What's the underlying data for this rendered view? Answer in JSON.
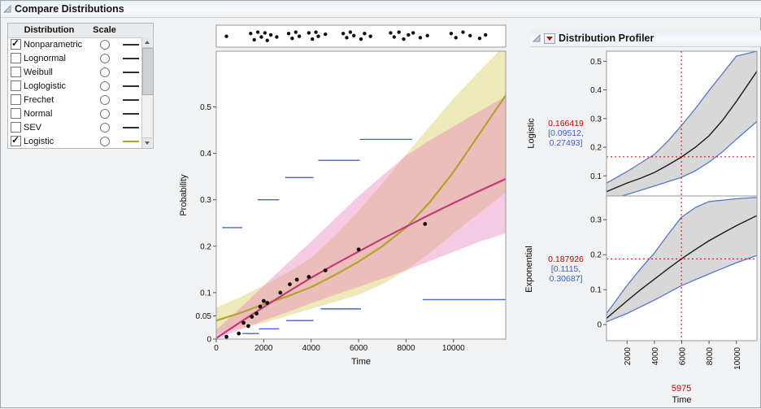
{
  "compare": {
    "title": "Compare Distributions",
    "table": {
      "headers": [
        "Distribution",
        "Scale"
      ],
      "rows": [
        {
          "label": "Nonparametric",
          "checked": true,
          "line_color": "#2e2e2e"
        },
        {
          "label": "Lognormal",
          "checked": false,
          "line_color": "#2e2e2e"
        },
        {
          "label": "Weibull",
          "checked": false,
          "line_color": "#2e2e2e"
        },
        {
          "label": "Loglogistic",
          "checked": false,
          "line_color": "#2e2e2e"
        },
        {
          "label": "Frechet",
          "checked": false,
          "line_color": "#2e2e2e"
        },
        {
          "label": "Normal",
          "checked": false,
          "line_color": "#2e2e2e"
        },
        {
          "label": "SEV",
          "checked": false,
          "line_color": "#2e2e2e"
        },
        {
          "label": "Logistic",
          "checked": true,
          "line_color": "#b3a22e"
        }
      ]
    }
  },
  "profiler": {
    "title": "Distribution Profiler",
    "rows": [
      {
        "label": "Logistic",
        "value": "0.166419",
        "ci_lines": [
          "[0.09512,",
          "0.27493]"
        ]
      },
      {
        "label": "Exponential",
        "value": "0.187926",
        "ci_lines": [
          "[0.1115,",
          "0.30687]"
        ]
      }
    ],
    "x_current": "5975",
    "x_label": "Time"
  },
  "icons": {
    "disclosure_open": "triangle-open",
    "red_triangle_menu": "red-triangle-down",
    "scrollbar_up": "triangle-up",
    "scrollbar_down": "triangle-down"
  },
  "colors": {
    "exponential_fit": "#c23b7c",
    "logistic_fit": "#b3a22e",
    "nonparametric_ci": "#4466cf",
    "profiler_value": "#cc0000",
    "profiler_ci_text": "#3a5fc8",
    "profiler_band": "#d8d8d8",
    "profiler_bound": "#5577cc"
  },
  "chart_data": [
    {
      "id": "compare-plot",
      "type": "line",
      "title": "Compare Distributions probability plot",
      "xlabel": "Time",
      "ylabel": "Probability",
      "xlim": [
        0,
        12200
      ],
      "ylim": [
        0,
        0.62
      ],
      "xticks": [
        0,
        2000,
        4000,
        6000,
        8000,
        10000
      ],
      "yticks": [
        0,
        0.05,
        0.1,
        0.2,
        0.3,
        0.4,
        0.5
      ],
      "grid": false,
      "nonparametric_color": "#4466cf",
      "event_points": [
        [
          430,
          0.55
        ],
        [
          1450,
          0.75
        ],
        [
          1600,
          0.3
        ],
        [
          1750,
          0.85
        ],
        [
          1900,
          0.5
        ],
        [
          2050,
          0.8
        ],
        [
          2150,
          0.25
        ],
        [
          2300,
          0.65
        ],
        [
          2550,
          0.5
        ],
        [
          3050,
          0.75
        ],
        [
          3200,
          0.4
        ],
        [
          3350,
          0.85
        ],
        [
          3500,
          0.55
        ],
        [
          3900,
          0.8
        ],
        [
          4050,
          0.35
        ],
        [
          4200,
          0.85
        ],
        [
          4300,
          0.55
        ],
        [
          4600,
          0.7
        ],
        [
          5350,
          0.75
        ],
        [
          5500,
          0.45
        ],
        [
          5650,
          0.85
        ],
        [
          5800,
          0.6
        ],
        [
          6100,
          0.35
        ],
        [
          6250,
          0.75
        ],
        [
          6500,
          0.55
        ],
        [
          7350,
          0.8
        ],
        [
          7500,
          0.5
        ],
        [
          7700,
          0.85
        ],
        [
          7900,
          0.35
        ],
        [
          8100,
          0.65
        ],
        [
          8300,
          0.8
        ],
        [
          8600,
          0.45
        ],
        [
          8900,
          0.6
        ],
        [
          9900,
          0.75
        ],
        [
          10100,
          0.45
        ],
        [
          10400,
          0.85
        ],
        [
          10700,
          0.6
        ],
        [
          11100,
          0.4
        ],
        [
          11350,
          0.65
        ]
      ],
      "scatter": [
        [
          430,
          0.005
        ],
        [
          950,
          0.012
        ],
        [
          1150,
          0.035
        ],
        [
          1350,
          0.028
        ],
        [
          1500,
          0.048
        ],
        [
          1700,
          0.055
        ],
        [
          1850,
          0.07
        ],
        [
          2000,
          0.082
        ],
        [
          2150,
          0.078
        ],
        [
          2700,
          0.1
        ],
        [
          3100,
          0.118
        ],
        [
          3400,
          0.128
        ],
        [
          3900,
          0.134
        ],
        [
          4600,
          0.148
        ],
        [
          6000,
          0.193
        ],
        [
          8800,
          0.248
        ]
      ],
      "nonparametric_steps": [
        [
          250,
          1100,
          0.24
        ],
        [
          1750,
          2650,
          0.3
        ],
        [
          2900,
          4100,
          0.348
        ],
        [
          4300,
          6050,
          0.385
        ],
        [
          6050,
          8250,
          0.43
        ],
        [
          1100,
          1800,
          0.012
        ],
        [
          1800,
          2650,
          0.022
        ],
        [
          2950,
          4100,
          0.04
        ],
        [
          4400,
          6100,
          0.065
        ],
        [
          8700,
          12200,
          0.085
        ]
      ],
      "series": [
        {
          "name": "Exponential",
          "color": "#c23b7c",
          "band_color": "rgba(231,126,184,0.40)",
          "points": [
            [
              0,
              0.002
            ],
            [
              1000,
              0.036
            ],
            [
              2000,
              0.069
            ],
            [
              3000,
              0.101
            ],
            [
              4000,
              0.132
            ],
            [
              5000,
              0.161
            ],
            [
              5975,
              0.188
            ],
            [
              7000,
              0.216
            ],
            [
              8000,
              0.242
            ],
            [
              9000,
              0.268
            ],
            [
              10000,
              0.293
            ],
            [
              11000,
              0.317
            ],
            [
              12200,
              0.345
            ]
          ],
          "band_lower": [
            [
              0,
              0.0
            ],
            [
              1000,
              0.02
            ],
            [
              2000,
              0.04
            ],
            [
              3000,
              0.058
            ],
            [
              4000,
              0.077
            ],
            [
              5000,
              0.095
            ],
            [
              5975,
              0.112
            ],
            [
              7000,
              0.13
            ],
            [
              8000,
              0.148
            ],
            [
              9000,
              0.168
            ],
            [
              10000,
              0.188
            ],
            [
              11000,
              0.208
            ],
            [
              12200,
              0.228
            ]
          ],
          "band_upper": [
            [
              0,
              0.02
            ],
            [
              1000,
              0.066
            ],
            [
              2000,
              0.115
            ],
            [
              3000,
              0.163
            ],
            [
              4000,
              0.21
            ],
            [
              5000,
              0.259
            ],
            [
              5975,
              0.307
            ],
            [
              7000,
              0.352
            ],
            [
              8000,
              0.395
            ],
            [
              9000,
              0.428
            ],
            [
              10000,
              0.458
            ],
            [
              11000,
              0.488
            ],
            [
              12200,
              0.523
            ]
          ]
        },
        {
          "name": "Logistic",
          "color": "#b3a22e",
          "band_color": "rgba(222,211,115,0.50)",
          "points": [
            [
              0,
              0.04
            ],
            [
              1000,
              0.056
            ],
            [
              2000,
              0.075
            ],
            [
              3000,
              0.092
            ],
            [
              4000,
              0.112
            ],
            [
              5000,
              0.138
            ],
            [
              5975,
              0.166
            ],
            [
              7000,
              0.2
            ],
            [
              8000,
              0.24
            ],
            [
              9000,
              0.295
            ],
            [
              10000,
              0.36
            ],
            [
              11000,
              0.435
            ],
            [
              12200,
              0.525
            ]
          ],
          "band_lower": [
            [
              0,
              0.012
            ],
            [
              1000,
              0.023
            ],
            [
              2000,
              0.035
            ],
            [
              3000,
              0.05
            ],
            [
              4000,
              0.065
            ],
            [
              5000,
              0.08
            ],
            [
              5975,
              0.095
            ],
            [
              7000,
              0.118
            ],
            [
              8000,
              0.148
            ],
            [
              9000,
              0.185
            ],
            [
              10000,
              0.228
            ],
            [
              11000,
              0.268
            ],
            [
              12200,
              0.315
            ]
          ],
          "band_upper": [
            [
              0,
              0.068
            ],
            [
              1000,
              0.09
            ],
            [
              2000,
              0.115
            ],
            [
              3000,
              0.143
            ],
            [
              4000,
              0.175
            ],
            [
              5000,
              0.222
            ],
            [
              5975,
              0.275
            ],
            [
              7000,
              0.335
            ],
            [
              8000,
              0.398
            ],
            [
              9000,
              0.458
            ],
            [
              10000,
              0.518
            ],
            [
              11000,
              0.572
            ],
            [
              12200,
              0.635
            ]
          ]
        }
      ]
    },
    {
      "id": "profiler-logistic",
      "type": "line",
      "ylabel": "Logistic",
      "xlim": [
        500,
        11500
      ],
      "ylim": [
        0.03,
        0.535
      ],
      "yticks": [
        0.1,
        0.2,
        0.3,
        0.4,
        0.5
      ],
      "band_color": "#d8d8d8",
      "bound_color": "#5577cc",
      "curve": [
        [
          500,
          0.045
        ],
        [
          2000,
          0.075
        ],
        [
          3000,
          0.092
        ],
        [
          4000,
          0.112
        ],
        [
          5000,
          0.138
        ],
        [
          5975,
          0.166
        ],
        [
          7000,
          0.2
        ],
        [
          8000,
          0.24
        ],
        [
          9000,
          0.295
        ],
        [
          10000,
          0.36
        ],
        [
          11500,
          0.465
        ]
      ],
      "band_lower": [
        [
          500,
          0.015
        ],
        [
          2000,
          0.035
        ],
        [
          4000,
          0.065
        ],
        [
          5975,
          0.095
        ],
        [
          7000,
          0.118
        ],
        [
          8000,
          0.148
        ],
        [
          9000,
          0.185
        ],
        [
          10000,
          0.228
        ],
        [
          11500,
          0.29
        ]
      ],
      "band_upper": [
        [
          500,
          0.075
        ],
        [
          2000,
          0.115
        ],
        [
          4000,
          0.175
        ],
        [
          5000,
          0.222
        ],
        [
          5975,
          0.275
        ],
        [
          7000,
          0.335
        ],
        [
          8000,
          0.398
        ],
        [
          9000,
          0.458
        ],
        [
          10000,
          0.518
        ],
        [
          11500,
          0.535
        ]
      ],
      "crosshair": {
        "x": 5975,
        "y": 0.166419
      }
    },
    {
      "id": "profiler-exponential",
      "type": "line",
      "ylabel": "Exponential",
      "xlabel": "Time",
      "xlim": [
        500,
        11500
      ],
      "ylim": [
        -0.046,
        0.368
      ],
      "yticks": [
        0,
        0.1,
        0.2,
        0.3
      ],
      "xticks": [
        2000,
        4000,
        6000,
        8000,
        10000
      ],
      "band_color": "#d8d8d8",
      "bound_color": "#5577cc",
      "curve": [
        [
          500,
          0.018
        ],
        [
          2000,
          0.068
        ],
        [
          3000,
          0.1
        ],
        [
          4000,
          0.13
        ],
        [
          5000,
          0.16
        ],
        [
          5975,
          0.188
        ],
        [
          7000,
          0.215
        ],
        [
          8000,
          0.24
        ],
        [
          9000,
          0.262
        ],
        [
          10000,
          0.283
        ],
        [
          11500,
          0.312
        ]
      ],
      "band_lower": [
        [
          500,
          0.008
        ],
        [
          2000,
          0.032
        ],
        [
          4000,
          0.07
        ],
        [
          5975,
          0.1115
        ],
        [
          8000,
          0.145
        ],
        [
          10000,
          0.177
        ],
        [
          11500,
          0.198
        ]
      ],
      "band_upper": [
        [
          500,
          0.032
        ],
        [
          2000,
          0.112
        ],
        [
          3000,
          0.16
        ],
        [
          4000,
          0.205
        ],
        [
          5000,
          0.258
        ],
        [
          5975,
          0.307
        ],
        [
          7000,
          0.335
        ],
        [
          8000,
          0.352
        ],
        [
          10000,
          0.36
        ],
        [
          11500,
          0.364
        ]
      ],
      "crosshair": {
        "x": 5975,
        "y": 0.187926
      }
    }
  ]
}
